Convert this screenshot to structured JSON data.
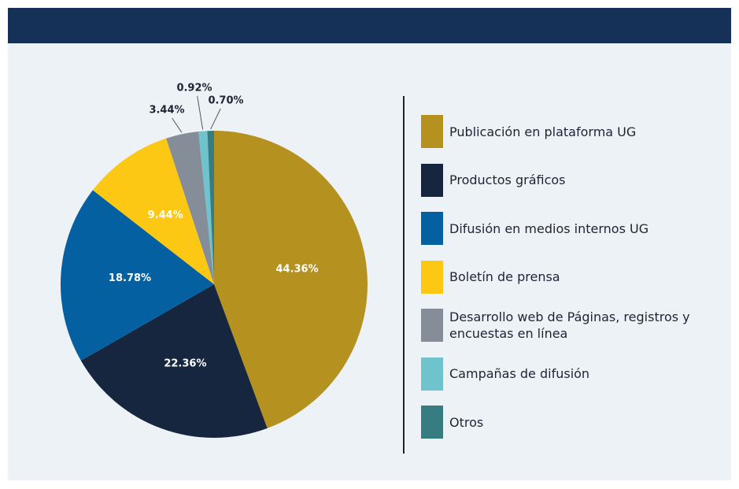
{
  "chart_data": {
    "type": "pie",
    "categories": [
      "Publicación en plataforma UG",
      "Productos gráficos",
      "Difusión en medios internos UG",
      "Boletín de prensa",
      "Desarrollo web de Páginas, registros y encuestas en línea",
      "Campañas de difusión",
      "Otros"
    ],
    "values": [
      44.36,
      22.36,
      18.78,
      9.44,
      3.44,
      0.92,
      0.7
    ],
    "value_labels": [
      "44.36%",
      "22.36%",
      "18.78%",
      "9.44%",
      "3.44%",
      "0.92%",
      "0.70%"
    ],
    "colors": [
      "#b5921f",
      "#17263f",
      "#0460a0",
      "#fcc814",
      "#858d99",
      "#6fc3cd",
      "#367c80"
    ]
  }
}
